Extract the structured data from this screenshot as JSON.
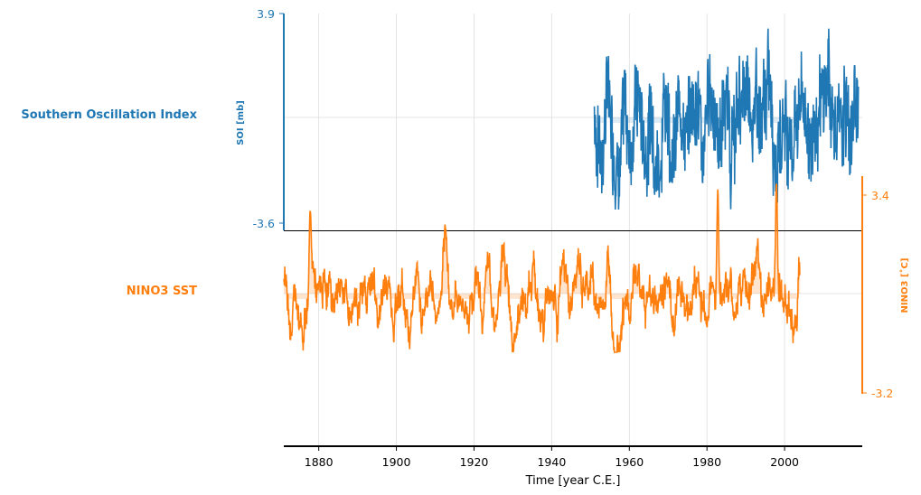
{
  "chart_data": {
    "type": "line",
    "xlabel": "Time [year C.E.]",
    "xlim": [
      1871,
      2020
    ],
    "x_ticks": [
      1880,
      1900,
      1920,
      1940,
      1960,
      1980,
      2000
    ],
    "panels": [
      {
        "name": "Southern Oscillation Index",
        "ylabel": "SOI [mb]",
        "ylim": [
          -3.6,
          3.9
        ],
        "y_ticks": [
          3.9,
          -3.6
        ],
        "y_tick_labels": [
          "3.9",
          "-3.6"
        ],
        "axis_side": "left",
        "color": "#1f77b4",
        "x_range": [
          1951,
          2019
        ],
        "amplitude": 2.0,
        "min": -3.0,
        "max": 2.8,
        "mean": 0.0
      },
      {
        "name": "NINO3 SST",
        "ylabel": "NINO3 [˚C]",
        "ylim": [
          -3.2,
          3.4
        ],
        "y_ticks": [
          3.4,
          -3.2
        ],
        "y_tick_labels": [
          "3.4",
          "-3.2"
        ],
        "axis_side": "right",
        "color": "#ff7f0e",
        "x_range": [
          1871,
          2004
        ],
        "amplitude": 1.3,
        "peaks": [
          {
            "x": 1877.8,
            "y": 2.7
          },
          {
            "x": 1982.8,
            "y": 3.4
          },
          {
            "x": 1997.9,
            "y": 3.6
          }
        ],
        "mean": 0.0
      }
    ],
    "grid": "vertical and zero-lines"
  }
}
